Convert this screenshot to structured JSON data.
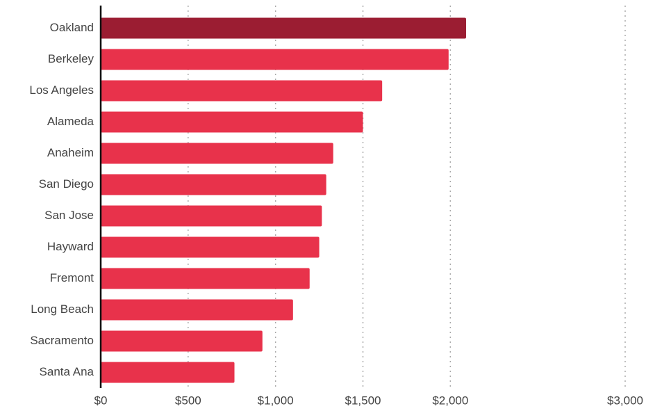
{
  "chart_data": {
    "type": "bar",
    "orientation": "horizontal",
    "categories": [
      "Oakland",
      "Berkeley",
      "Los Angeles",
      "Alameda",
      "Anaheim",
      "San Diego",
      "San Jose",
      "Hayward",
      "Fremont",
      "Long Beach",
      "Sacramento",
      "Santa Ana"
    ],
    "values": [
      2090,
      1990,
      1610,
      1500,
      1330,
      1290,
      1265,
      1250,
      1195,
      1100,
      925,
      765
    ],
    "colors": [
      "#9b1d32",
      "#e8324b",
      "#e8324b",
      "#e8324b",
      "#e8324b",
      "#e8324b",
      "#e8324b",
      "#e8324b",
      "#e8324b",
      "#e8324b",
      "#e8324b",
      "#e8324b"
    ],
    "xlim": [
      0,
      3000
    ],
    "xticks": [
      {
        "value": 0,
        "label": "$0"
      },
      {
        "value": 500,
        "label": "$500"
      },
      {
        "value": 1000,
        "label": "$1,000"
      },
      {
        "value": 1500,
        "label": "$1,500"
      },
      {
        "value": 2000,
        "label": "$2,000"
      },
      {
        "value": 3000,
        "label": "$3,000"
      }
    ],
    "grid": true
  }
}
